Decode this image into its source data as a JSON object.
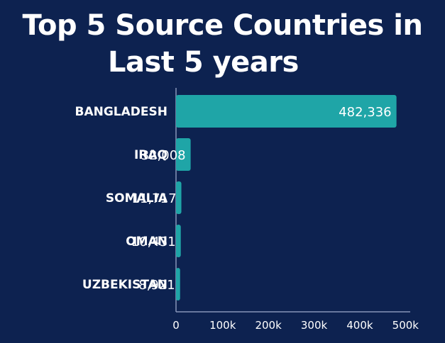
{
  "chart_data": {
    "type": "bar",
    "orientation": "horizontal",
    "title_lines": [
      "Top 5 Source Countries in",
      "Last 5 years"
    ],
    "categories": [
      "BANGLADESH",
      "IRAQ",
      "SOMALIA",
      "OMAN",
      "UZBEKISTAN"
    ],
    "values": [
      482336,
      32008,
      11717,
      10431,
      8921
    ],
    "value_labels": [
      "482,336",
      "32,008",
      "11,717",
      "10,431",
      "8,921"
    ],
    "xticks": [
      0,
      100000,
      200000,
      300000,
      400000,
      500000
    ],
    "xtick_labels": [
      "0",
      "100k",
      "200k",
      "300k",
      "400k",
      "500k"
    ],
    "xlim": [
      0,
      500000
    ],
    "grid": false,
    "legend": "none",
    "xlabel": "",
    "ylabel": ""
  },
  "colors": {
    "background": "#0d2250",
    "bar": "#1fa5a7",
    "text": "#ffffff",
    "axis": "#8795b8"
  }
}
